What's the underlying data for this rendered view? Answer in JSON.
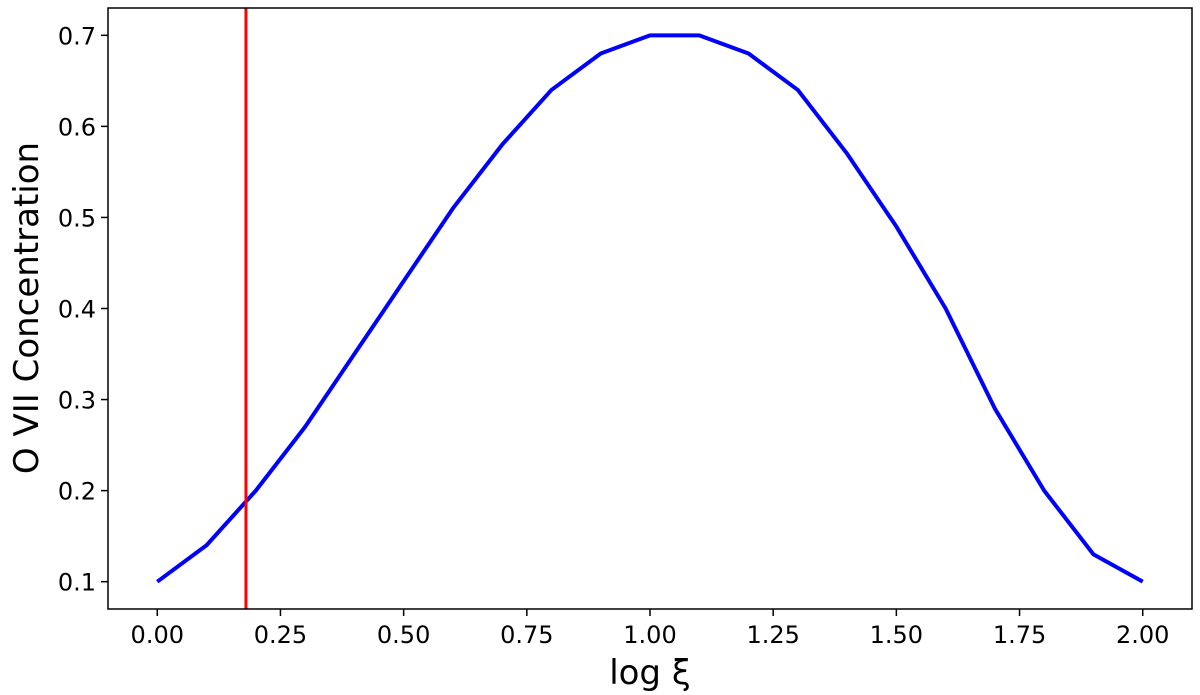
{
  "chart_data": {
    "type": "line",
    "xlabel": "log ξ",
    "ylabel": "O VII Concentration",
    "xlim": [
      -0.1,
      2.1
    ],
    "ylim": [
      0.07,
      0.73
    ],
    "grid": false,
    "x_ticks": [
      0.0,
      0.25,
      0.5,
      0.75,
      1.0,
      1.25,
      1.5,
      1.75,
      2.0
    ],
    "x_tick_labels": [
      "0.00",
      "0.25",
      "0.50",
      "0.75",
      "1.00",
      "1.25",
      "1.50",
      "1.75",
      "2.00"
    ],
    "y_ticks": [
      0.1,
      0.2,
      0.3,
      0.4,
      0.5,
      0.6,
      0.7
    ],
    "y_tick_labels": [
      "0.1",
      "0.2",
      "0.3",
      "0.4",
      "0.5",
      "0.6",
      "0.7"
    ],
    "series": [
      {
        "color": "#0000ff",
        "x": [
          0.0,
          0.1,
          0.2,
          0.3,
          0.4,
          0.5,
          0.6,
          0.7,
          0.8,
          0.9,
          1.0,
          1.1,
          1.2,
          1.3,
          1.4,
          1.5,
          1.6,
          1.7,
          1.8,
          1.9,
          2.0
        ],
        "y": [
          0.1,
          0.14,
          0.2,
          0.27,
          0.35,
          0.43,
          0.51,
          0.58,
          0.64,
          0.68,
          0.7,
          0.7,
          0.68,
          0.64,
          0.57,
          0.49,
          0.4,
          0.29,
          0.2,
          0.13,
          0.1
        ]
      }
    ],
    "vertical_lines": [
      {
        "x": 0.18,
        "color": "#ff0000"
      }
    ]
  }
}
